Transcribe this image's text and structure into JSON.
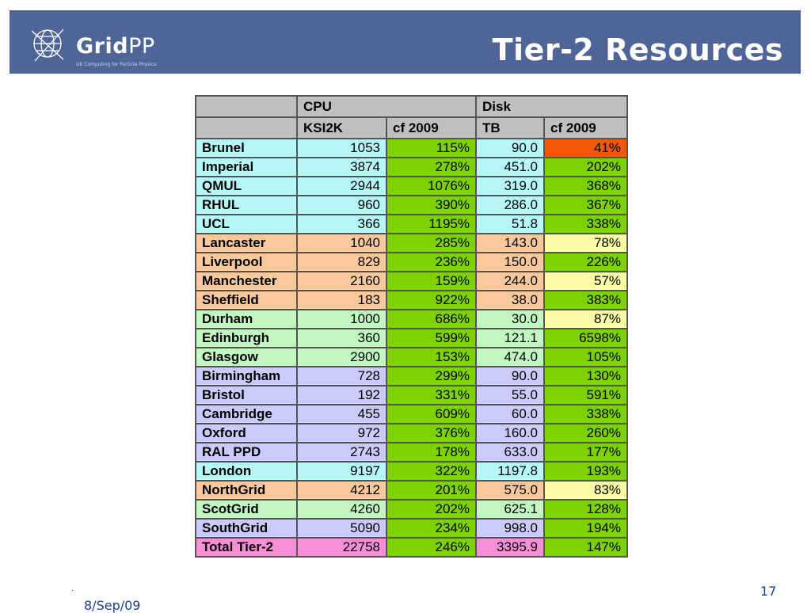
{
  "header": {
    "logo_text_bold": "Grid",
    "logo_text_thin": "PP",
    "logo_tagline": "UK Computing for Particle Physics",
    "title": "Tier-2 Resources",
    "bar_color": "#4f6497"
  },
  "table": {
    "group_headers": [
      "CPU",
      "Disk"
    ],
    "column_headers": [
      "KSI2K",
      "cf 2009",
      "TB",
      "cf 2009"
    ],
    "rows": [
      {
        "site": "Brunel",
        "ksi2k": "1053",
        "cpu_cf": "115%",
        "tb": "90.0",
        "disk_cf": "41%",
        "group": "london",
        "disk_flag": "orange"
      },
      {
        "site": "Imperial",
        "ksi2k": "3874",
        "cpu_cf": "278%",
        "tb": "451.0",
        "disk_cf": "202%",
        "group": "london",
        "disk_flag": "green"
      },
      {
        "site": "QMUL",
        "ksi2k": "2944",
        "cpu_cf": "1076%",
        "tb": "319.0",
        "disk_cf": "368%",
        "group": "london",
        "disk_flag": "green"
      },
      {
        "site": "RHUL",
        "ksi2k": "960",
        "cpu_cf": "390%",
        "tb": "286.0",
        "disk_cf": "367%",
        "group": "london",
        "disk_flag": "green"
      },
      {
        "site": "UCL",
        "ksi2k": "366",
        "cpu_cf": "1195%",
        "tb": "51.8",
        "disk_cf": "338%",
        "group": "london",
        "disk_flag": "green"
      },
      {
        "site": "Lancaster",
        "ksi2k": "1040",
        "cpu_cf": "285%",
        "tb": "143.0",
        "disk_cf": "78%",
        "group": "north",
        "disk_flag": "yellow"
      },
      {
        "site": "Liverpool",
        "ksi2k": "829",
        "cpu_cf": "236%",
        "tb": "150.0",
        "disk_cf": "226%",
        "group": "north",
        "disk_flag": "green"
      },
      {
        "site": "Manchester",
        "ksi2k": "2160",
        "cpu_cf": "159%",
        "tb": "244.0",
        "disk_cf": "57%",
        "group": "north",
        "disk_flag": "yellow"
      },
      {
        "site": "Sheffield",
        "ksi2k": "183",
        "cpu_cf": "922%",
        "tb": "38.0",
        "disk_cf": "383%",
        "group": "north",
        "disk_flag": "green"
      },
      {
        "site": "Durham",
        "ksi2k": "1000",
        "cpu_cf": "686%",
        "tb": "30.0",
        "disk_cf": "87%",
        "group": "scot",
        "disk_flag": "yellow"
      },
      {
        "site": "Edinburgh",
        "ksi2k": "360",
        "cpu_cf": "599%",
        "tb": "121.1",
        "disk_cf": "6598%",
        "group": "scot",
        "disk_flag": "green"
      },
      {
        "site": "Glasgow",
        "ksi2k": "2900",
        "cpu_cf": "153%",
        "tb": "474.0",
        "disk_cf": "105%",
        "group": "scot",
        "disk_flag": "green"
      },
      {
        "site": "Birmingham",
        "ksi2k": "728",
        "cpu_cf": "299%",
        "tb": "90.0",
        "disk_cf": "130%",
        "group": "south",
        "disk_flag": "green"
      },
      {
        "site": "Bristol",
        "ksi2k": "192",
        "cpu_cf": "331%",
        "tb": "55.0",
        "disk_cf": "591%",
        "group": "south",
        "disk_flag": "green"
      },
      {
        "site": "Cambridge",
        "ksi2k": "455",
        "cpu_cf": "609%",
        "tb": "60.0",
        "disk_cf": "338%",
        "group": "south",
        "disk_flag": "green"
      },
      {
        "site": "Oxford",
        "ksi2k": "972",
        "cpu_cf": "376%",
        "tb": "160.0",
        "disk_cf": "260%",
        "group": "south",
        "disk_flag": "green"
      },
      {
        "site": "RAL PPD",
        "ksi2k": "2743",
        "cpu_cf": "178%",
        "tb": "633.0",
        "disk_cf": "177%",
        "group": "south",
        "disk_flag": "green"
      },
      {
        "site": "London",
        "ksi2k": "9197",
        "cpu_cf": "322%",
        "tb": "1197.8",
        "disk_cf": "193%",
        "group": "london",
        "disk_flag": "green"
      },
      {
        "site": "NorthGrid",
        "ksi2k": "4212",
        "cpu_cf": "201%",
        "tb": "575.0",
        "disk_cf": "83%",
        "group": "north",
        "disk_flag": "yellow"
      },
      {
        "site": "ScotGrid",
        "ksi2k": "4260",
        "cpu_cf": "202%",
        "tb": "625.1",
        "disk_cf": "128%",
        "group": "scot",
        "disk_flag": "green"
      },
      {
        "site": "SouthGrid",
        "ksi2k": "5090",
        "cpu_cf": "234%",
        "tb": "998.0",
        "disk_cf": "194%",
        "group": "south",
        "disk_flag": "green"
      },
      {
        "site": "Total Tier-2",
        "ksi2k": "22758",
        "cpu_cf": "246%",
        "tb": "3395.9",
        "disk_cf": "147%",
        "group": "total",
        "disk_flag": "green"
      }
    ]
  },
  "colors": {
    "london": "#b8f7f8",
    "north": "#f9c89d",
    "scot": "#c2f7c2",
    "south": "#cbcbf9",
    "total": "#f88fd6",
    "green": "#7ed100",
    "orange": "#f25a0a",
    "yellow": "#fcfca8"
  },
  "footer": {
    "page_number": "17",
    "date": "8/Sep/09",
    "dot": "."
  }
}
